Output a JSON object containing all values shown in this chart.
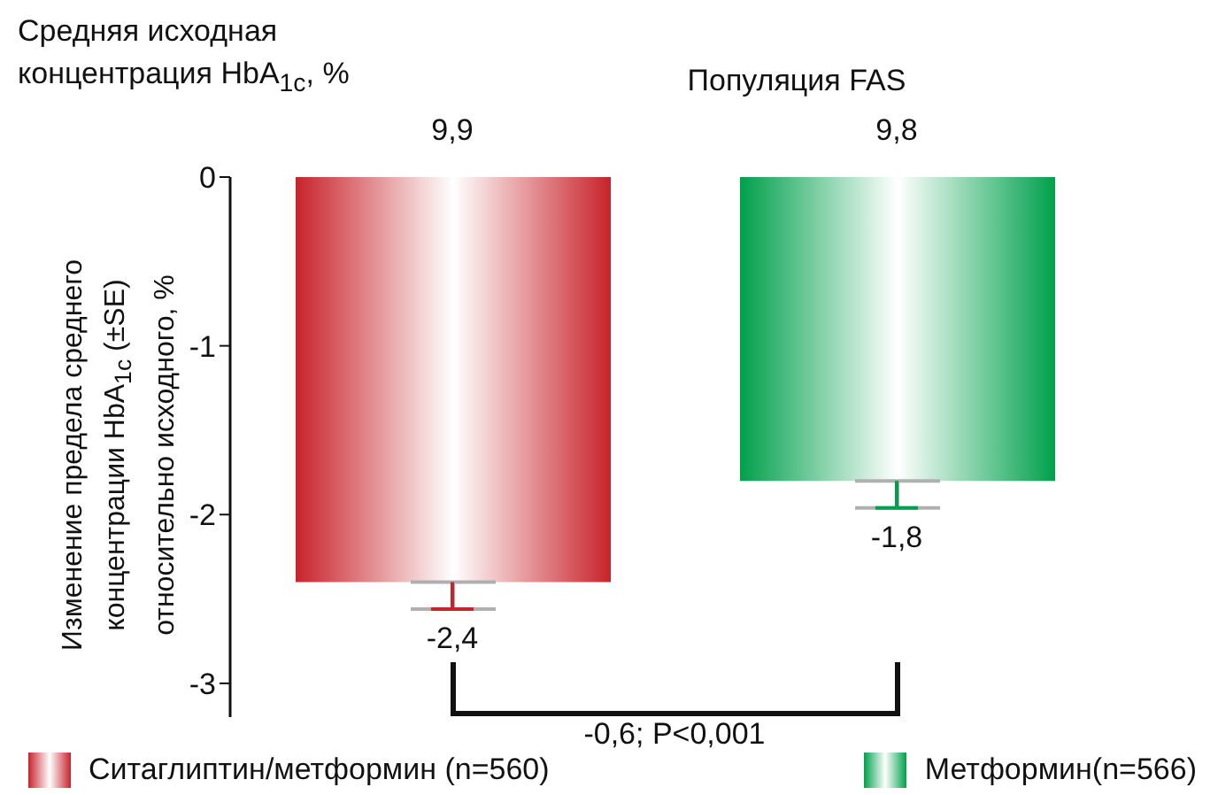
{
  "chart_data": {
    "type": "bar",
    "title": "Популяция FAS",
    "subtitle": "Средняя исходная концентрация HbA$_{1c}$, %",
    "ylabel": "Изменение предела среднего концентрации HbA$_{1c}$ (±SE) относительно исходного, %",
    "categories": [
      "Ситаглиптин/метформин (n=560)",
      "Метформин(n=566)"
    ],
    "values": [
      -2.4,
      -1.8
    ],
    "colors": [
      "#c8232b",
      "#00a04b"
    ],
    "errors": [
      [
        -2.56,
        -2.4
      ],
      [
        -1.96,
        -1.8
      ]
    ],
    "value_labels": [
      "-2,4",
      "-1,8"
    ],
    "ylim": [
      -3.2,
      0
    ],
    "yticks": [
      0,
      -1,
      -2,
      -3
    ],
    "grid": false,
    "tick_labels": "y",
    "annotations": [
      "9,9",
      "9,8",
      "-0,6; P<0,001"
    ]
  }
}
